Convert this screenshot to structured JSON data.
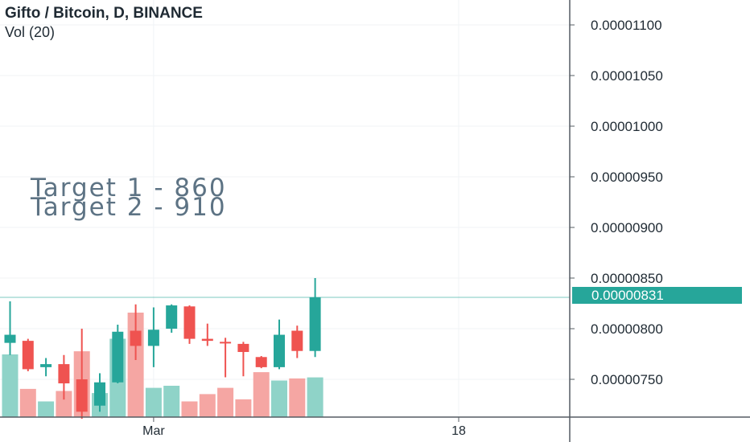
{
  "header": {
    "title": "Gifto / Bitcoin, D, BINANCE",
    "volume_label": "Vol (20)"
  },
  "annotations": [
    "Target 1 - 860",
    "Target 2 - 910"
  ],
  "current_price": {
    "label": "0.00000831",
    "value": 8.31e-06,
    "color": "#26a69a"
  },
  "colors": {
    "up": "#26a69a",
    "down": "#ef5350",
    "up_volume": "#8fd3c8",
    "down_volume": "#f5a6a3",
    "grid": "#f0f3f6",
    "axis": "#555c63",
    "text": "#1f2a33",
    "annotation": "#5d7384"
  },
  "chart_data": {
    "type": "candlestick",
    "title": "Gifto / Bitcoin, D, BINANCE",
    "x_ticks": [
      {
        "label": "Mar",
        "index": 8
      },
      {
        "label": "18",
        "index": 25
      }
    ],
    "y_ticks": [
      {
        "label": "0.00001100",
        "value": 1.1e-05
      },
      {
        "label": "0.00001050",
        "value": 1.05e-05
      },
      {
        "label": "0.00001000",
        "value": 1e-05
      },
      {
        "label": "0.00000950",
        "value": 9.5e-06
      },
      {
        "label": "0.00000900",
        "value": 9e-06
      },
      {
        "label": "0.00000850",
        "value": 8.5e-06
      },
      {
        "label": "0.00000800",
        "value": 8e-06
      },
      {
        "label": "0.00000750",
        "value": 7.5e-06
      }
    ],
    "ylim": [
      7.1e-06,
      1.13e-05
    ],
    "candles": [
      {
        "o": 7.86e-06,
        "h": 8.27e-06,
        "l": 7.74e-06,
        "c": 7.94e-06
      },
      {
        "o": 7.88e-06,
        "h": 7.9e-06,
        "l": 7.58e-06,
        "c": 7.6e-06
      },
      {
        "o": 7.62e-06,
        "h": 7.71e-06,
        "l": 7.53e-06,
        "c": 7.65e-06
      },
      {
        "o": 7.65e-06,
        "h": 7.74e-06,
        "l": 7.3e-06,
        "c": 7.46e-06
      },
      {
        "o": 7.5e-06,
        "h": 8e-06,
        "l": 7.11e-06,
        "c": 7.18e-06
      },
      {
        "o": 7.24e-06,
        "h": 7.56e-06,
        "l": 7.18e-06,
        "c": 7.47e-06
      },
      {
        "o": 7.47e-06,
        "h": 8.04e-06,
        "l": 7.46e-06,
        "c": 7.97e-06
      },
      {
        "o": 7.98e-06,
        "h": 8.24e-06,
        "l": 7.69e-06,
        "c": 7.83e-06
      },
      {
        "o": 7.83e-06,
        "h": 8.21e-06,
        "l": 7.62e-06,
        "c": 7.99e-06
      },
      {
        "o": 8e-06,
        "h": 8.24e-06,
        "l": 7.96e-06,
        "c": 8.23e-06
      },
      {
        "o": 8.22e-06,
        "h": 8.23e-06,
        "l": 7.85e-06,
        "c": 7.9e-06
      },
      {
        "o": 7.9e-06,
        "h": 8.05e-06,
        "l": 7.83e-06,
        "c": 7.88e-06
      },
      {
        "o": 7.87e-06,
        "h": 7.91e-06,
        "l": 7.52e-06,
        "c": 7.86e-06
      },
      {
        "o": 7.85e-06,
        "h": 7.87e-06,
        "l": 7.53e-06,
        "c": 7.77e-06
      },
      {
        "o": 7.72e-06,
        "h": 7.73e-06,
        "l": 7.61e-06,
        "c": 7.62e-06
      },
      {
        "o": 7.62e-06,
        "h": 8.09e-06,
        "l": 7.6e-06,
        "c": 7.94e-06
      },
      {
        "o": 7.98e-06,
        "h": 8.03e-06,
        "l": 7.71e-06,
        "c": 7.78e-06
      },
      {
        "o": 7.78e-06,
        "h": 8.5e-06,
        "l": 7.72e-06,
        "c": 8.31e-06
      }
    ],
    "volume_direction": [
      "up",
      "down",
      "up",
      "down",
      "down",
      "up",
      "up",
      "down",
      "up",
      "up",
      "down",
      "down",
      "down",
      "down",
      "down",
      "up",
      "down",
      "up"
    ],
    "volume_relative": [
      0.6,
      0.27,
      0.15,
      0.25,
      0.63,
      0.23,
      0.75,
      1.0,
      0.28,
      0.3,
      0.15,
      0.22,
      0.28,
      0.17,
      0.43,
      0.35,
      0.37,
      0.38
    ]
  }
}
